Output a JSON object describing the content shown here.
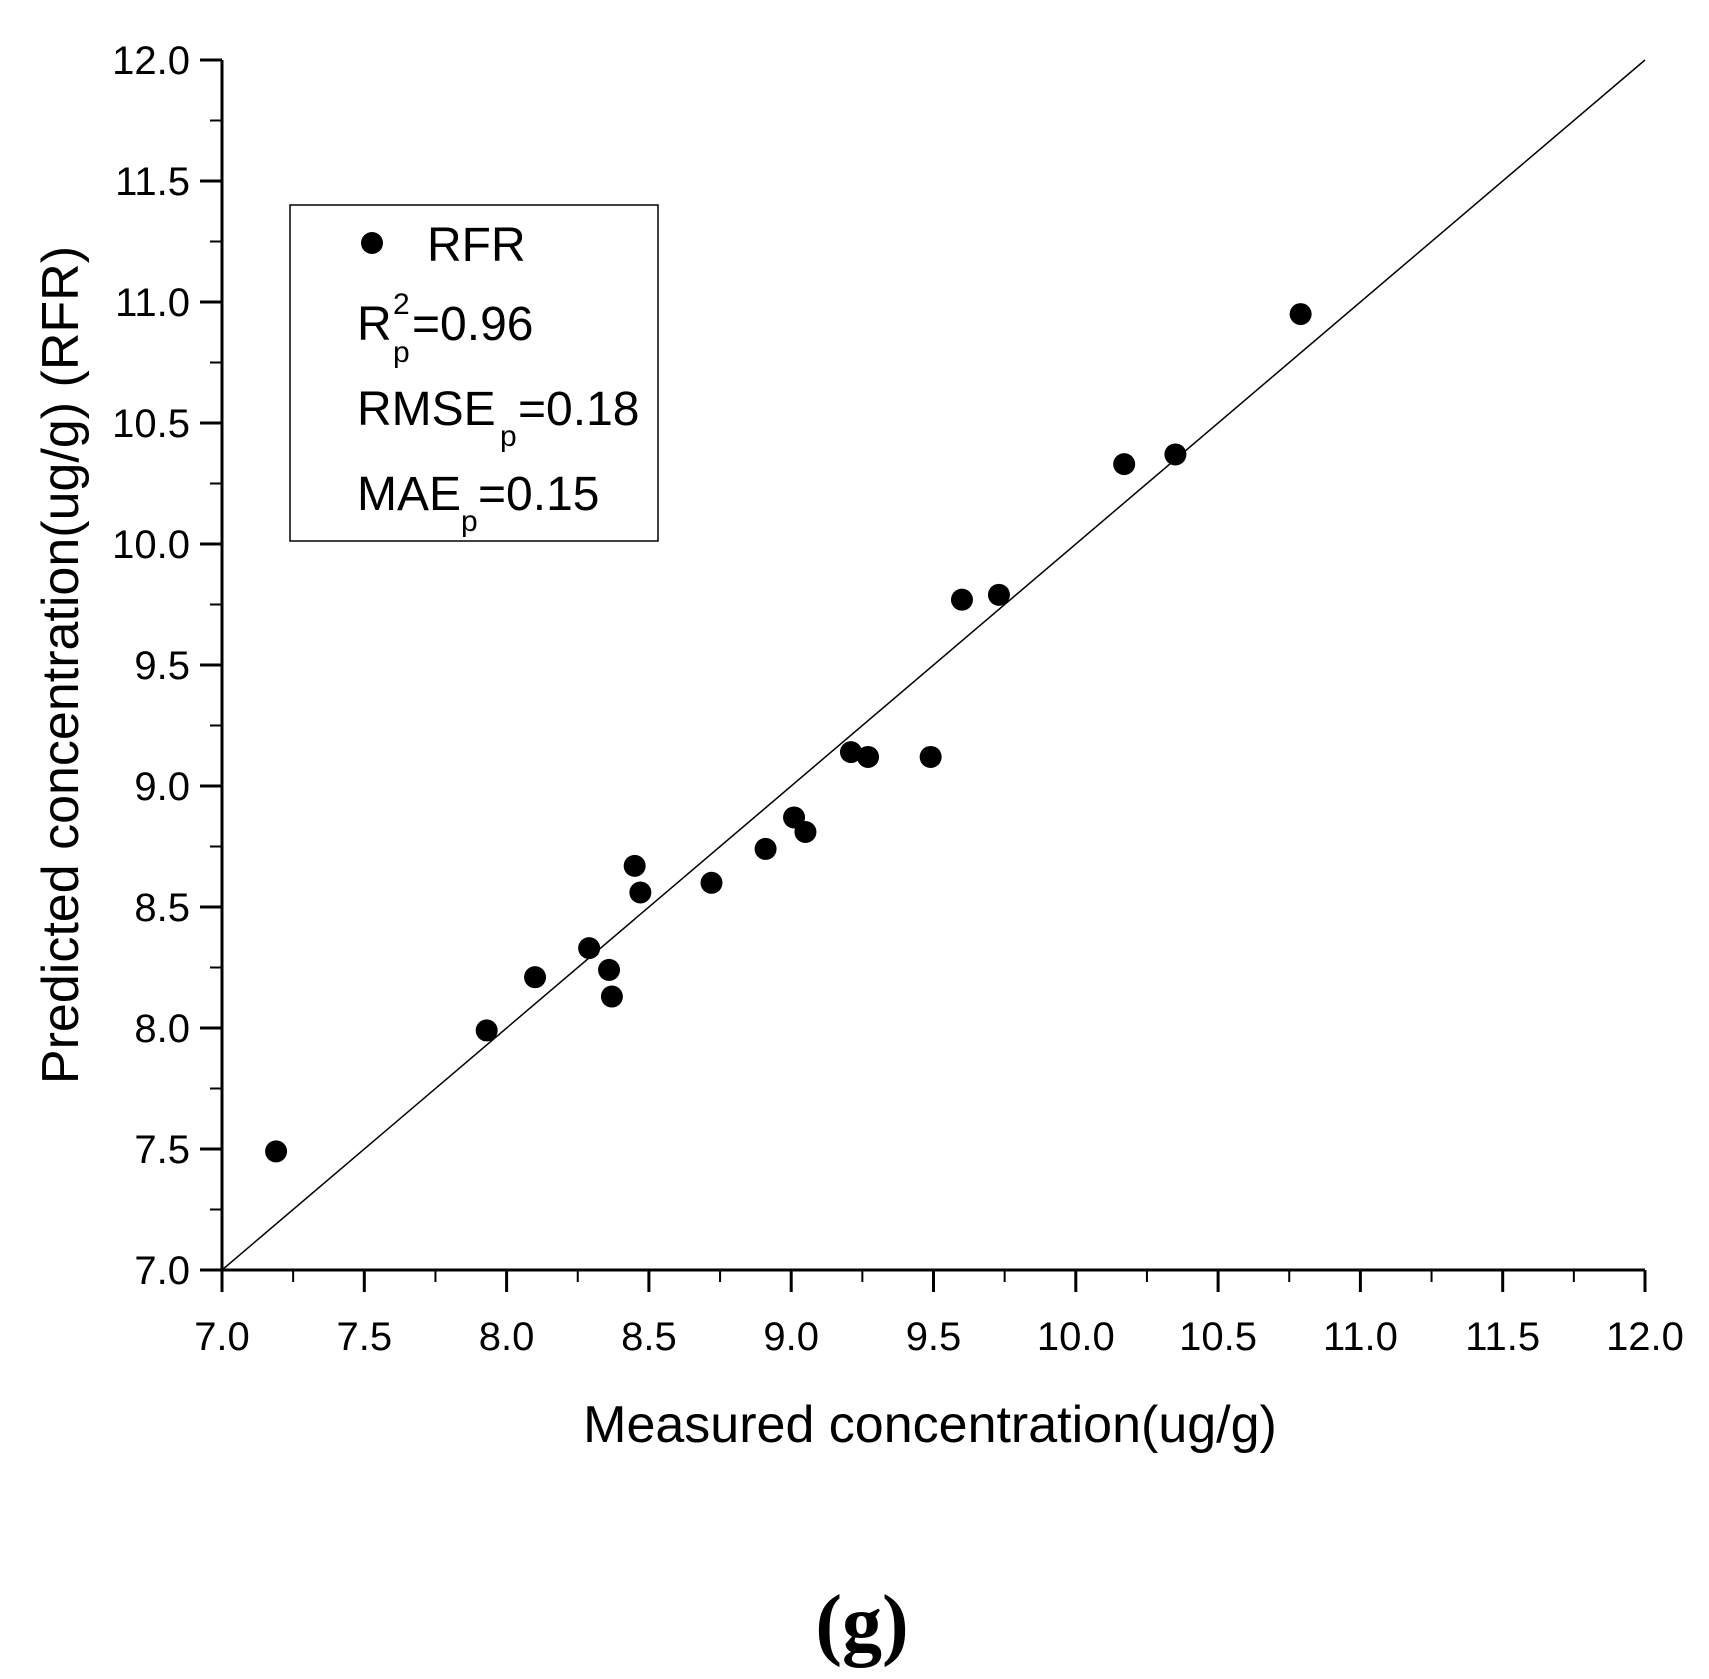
{
  "chart_data": {
    "type": "scatter",
    "xlabel": "Measured concentration(ug/g)",
    "ylabel": "Predicted concentration(ug/g) (RFR)",
    "xlim": [
      7.0,
      12.0
    ],
    "ylim": [
      7.0,
      12.0
    ],
    "x_ticks": [
      "7.0",
      "7.5",
      "8.0",
      "8.5",
      "9.0",
      "9.5",
      "10.0",
      "10.5",
      "11.0",
      "11.5",
      "12.0"
    ],
    "y_ticks": [
      "7.0",
      "7.5",
      "8.0",
      "8.5",
      "9.0",
      "9.5",
      "10.0",
      "10.5",
      "11.0",
      "11.5",
      "12.0"
    ],
    "reference_line": {
      "from": [
        7.0,
        7.0
      ],
      "to": [
        12.0,
        12.0
      ]
    },
    "series": [
      {
        "name": "RFR",
        "points": [
          [
            7.19,
            7.49
          ],
          [
            7.93,
            7.99
          ],
          [
            8.1,
            8.21
          ],
          [
            8.29,
            8.33
          ],
          [
            8.36,
            8.24
          ],
          [
            8.37,
            8.13
          ],
          [
            8.45,
            8.67
          ],
          [
            8.47,
            8.56
          ],
          [
            8.72,
            8.6
          ],
          [
            8.91,
            8.74
          ],
          [
            9.01,
            8.87
          ],
          [
            9.05,
            8.81
          ],
          [
            9.21,
            9.14
          ],
          [
            9.27,
            9.12
          ],
          [
            9.49,
            9.12
          ],
          [
            9.6,
            9.77
          ],
          [
            9.73,
            9.79
          ],
          [
            10.17,
            10.33
          ],
          [
            10.35,
            10.37
          ],
          [
            10.79,
            10.95
          ]
        ]
      }
    ],
    "legend": {
      "series_label": "RFR",
      "r2_label": "R",
      "r2_sup": "2",
      "r2_sub": "p",
      "r2_value": "=0.96",
      "rmse_label": "RMSE",
      "rmse_sub": "p",
      "rmse_value": "=0.18",
      "mae_label": "MAE",
      "mae_sub": "p",
      "mae_value": "=0.15"
    },
    "panel_label": "(g)"
  }
}
